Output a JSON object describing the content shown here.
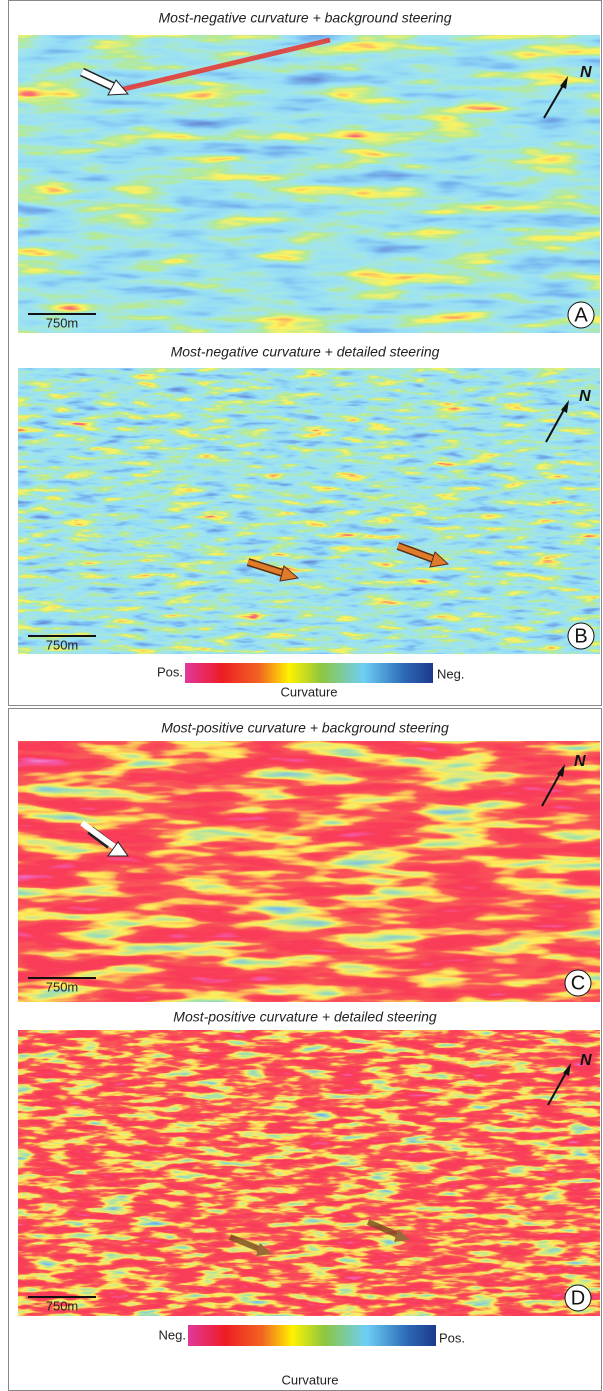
{
  "figure": {
    "panels": [
      {
        "title": "Most-negative curvature + background steering",
        "letter": "A",
        "scale_label": "750m"
      },
      {
        "title": "Most-negative curvature + detailed steering",
        "letter": "B",
        "scale_label": "750m"
      },
      {
        "title": "Most-positive curvature + background steering",
        "letter": "C",
        "scale_label": "750m"
      },
      {
        "title": "Most-positive curvature + detailed steering",
        "letter": "D",
        "scale_label": "750m"
      }
    ],
    "colorbars": [
      {
        "left": "Pos.",
        "right": "Neg.",
        "label": "Curvature"
      },
      {
        "left": "Neg.",
        "right": "Pos.",
        "label": "Curvature"
      }
    ]
  }
}
